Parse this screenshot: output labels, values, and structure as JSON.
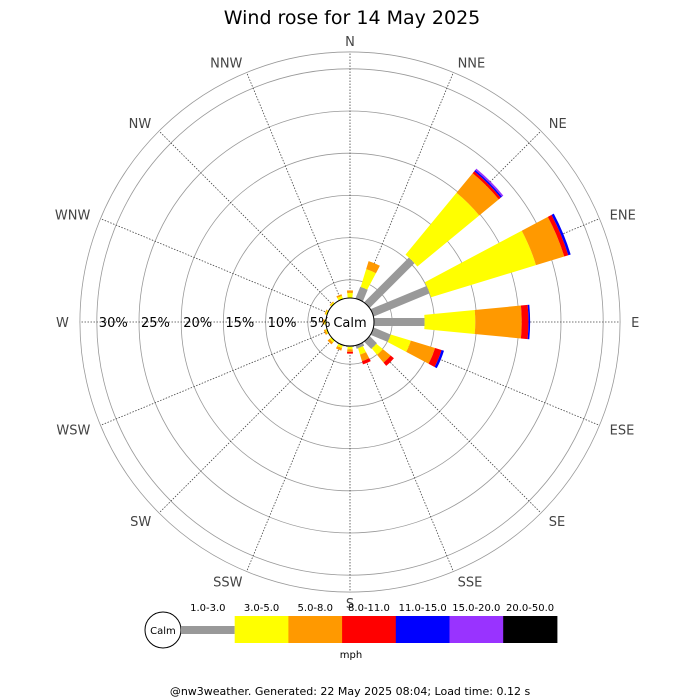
{
  "chart_data": {
    "type": "wind-rose",
    "title": "Wind rose for 14 May 2025",
    "directions": [
      "N",
      "NNE",
      "NE",
      "ENE",
      "E",
      "ESE",
      "SE",
      "SSE",
      "S",
      "SSW",
      "SW",
      "WSW",
      "W",
      "WNW",
      "NW",
      "NNW"
    ],
    "direction_angles_deg": [
      0,
      22.5,
      45,
      67.5,
      90,
      112.5,
      135,
      157.5,
      180,
      202.5,
      225,
      247.5,
      270,
      292.5,
      315,
      337.5
    ],
    "radial_ticks": [
      "5%",
      "10%",
      "15%",
      "20%",
      "25%",
      "30%"
    ],
    "radial_tick_values": [
      5,
      10,
      15,
      20,
      25,
      30
    ],
    "rmax_percent": 32,
    "calm_label": "Calm",
    "speed_bins": [
      {
        "label": "1.0-3.0",
        "color": "#999999"
      },
      {
        "label": "3.0-5.0",
        "color": "#ffff00"
      },
      {
        "label": "5.0-8.0",
        "color": "#ff9900"
      },
      {
        "label": "8.0-11.0",
        "color": "#ff0000"
      },
      {
        "label": "11.0-15.0",
        "color": "#0000ff"
      },
      {
        "label": "15.0-20.0",
        "color": "#9933ff"
      },
      {
        "label": "20.0-50.0",
        "color": "#000000"
      }
    ],
    "units": "mph",
    "series": [
      {
        "direction": "N",
        "values": [
          0.0,
          0.6,
          0.3,
          0.0,
          0.0,
          0.0,
          0.0
        ]
      },
      {
        "direction": "NNE",
        "values": [
          1.5,
          2.2,
          1.0,
          0.0,
          0.0,
          0.0,
          0.0
        ]
      },
      {
        "direction": "NE",
        "values": [
          7.5,
          9.5,
          3.0,
          0.3,
          0.2,
          0.2,
          0.0
        ]
      },
      {
        "direction": "ENE",
        "values": [
          7.2,
          13.0,
          3.5,
          0.5,
          0.3,
          0.0,
          0.0
        ]
      },
      {
        "direction": "E",
        "values": [
          6.0,
          6.0,
          5.5,
          0.8,
          0.2,
          0.0,
          0.0
        ]
      },
      {
        "direction": "ESE",
        "values": [
          2.2,
          2.5,
          3.0,
          0.8,
          0.3,
          0.0,
          0.0
        ]
      },
      {
        "direction": "SE",
        "values": [
          1.2,
          1.0,
          1.2,
          0.5,
          0.0,
          0.0,
          0.0
        ]
      },
      {
        "direction": "SSE",
        "values": [
          0.4,
          0.8,
          0.8,
          0.4,
          0.0,
          0.0,
          0.0
        ]
      },
      {
        "direction": "S",
        "values": [
          0.1,
          0.3,
          0.3,
          0.2,
          0.0,
          0.0,
          0.0
        ]
      },
      {
        "direction": "SSW",
        "values": [
          0.1,
          0.3,
          0.3,
          0.0,
          0.0,
          0.0,
          0.0
        ]
      },
      {
        "direction": "SW",
        "values": [
          0.0,
          0.3,
          0.3,
          0.0,
          0.0,
          0.0,
          0.0
        ]
      },
      {
        "direction": "WSW",
        "values": [
          0.0,
          0.2,
          0.2,
          0.0,
          0.0,
          0.0,
          0.0
        ]
      },
      {
        "direction": "W",
        "values": [
          0.0,
          0.2,
          0.2,
          0.0,
          0.0,
          0.0,
          0.0
        ]
      },
      {
        "direction": "WNW",
        "values": [
          0.0,
          0.2,
          0.1,
          0.0,
          0.0,
          0.0,
          0.0
        ]
      },
      {
        "direction": "NW",
        "values": [
          0.0,
          0.2,
          0.1,
          0.0,
          0.0,
          0.0,
          0.0
        ]
      },
      {
        "direction": "NNW",
        "values": [
          0.0,
          0.4,
          0.2,
          0.0,
          0.0,
          0.0,
          0.0
        ]
      }
    ]
  },
  "footer": {
    "text": "@nw3weather. Generated: 22 May 2025 08:04; Load time: 0.12 s"
  }
}
